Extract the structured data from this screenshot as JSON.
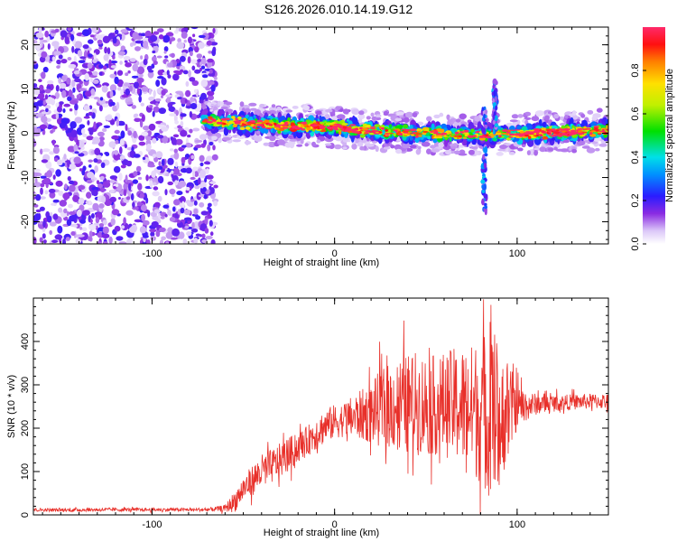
{
  "title": "S126.2026.010.14.19.G12",
  "chart_data": [
    {
      "type": "heatmap",
      "xlabel": "Height of straight line (km)",
      "ylabel": "Frequency (Hz)",
      "xlim": [
        -165,
        150
      ],
      "ylim": [
        -25,
        24
      ],
      "x_ticks": [
        -100,
        0,
        100
      ],
      "y_ticks": [
        20,
        10,
        0,
        -10,
        -20
      ],
      "grid": false,
      "colorbar": {
        "label": "Normalized spectral amplitude",
        "range": [
          0,
          1
        ],
        "ticks": [
          0.0,
          0.2,
          0.4,
          0.6,
          0.8
        ]
      },
      "features": [
        {
          "kind": "noise",
          "x_range": [
            -165,
            -65
          ],
          "y_range": [
            -25,
            24
          ],
          "level": 0.12
        },
        {
          "kind": "ridge",
          "x": [
            -72,
            -60,
            -50,
            -40,
            -30,
            -20,
            -10,
            0,
            10,
            20,
            30,
            40,
            50,
            60,
            70,
            80,
            90,
            100,
            110,
            120,
            130,
            140,
            150
          ],
          "y": [
            3,
            2.6,
            2.2,
            2,
            1.8,
            1.7,
            1.6,
            1.4,
            1,
            0.7,
            0.4,
            0.2,
            0,
            -0.2,
            -0.3,
            -0.3,
            -0.2,
            -0.1,
            0,
            0.2,
            0.4,
            0.6,
            0.8
          ],
          "amplitude": [
            0.35,
            0.5,
            0.55,
            0.6,
            0.62,
            0.65,
            0.7,
            0.72,
            0.7,
            0.65,
            0.6,
            0.58,
            0.56,
            0.55,
            0.52,
            0.5,
            0.45,
            0.6,
            0.66,
            0.68,
            0.66,
            0.6,
            0.55
          ]
        },
        {
          "kind": "vertical-streak",
          "x": 82,
          "y_range": [
            -18,
            6
          ],
          "level": 0.3
        },
        {
          "kind": "vertical-streak",
          "x": 88,
          "y_range": [
            0,
            12
          ],
          "level": 0.3
        }
      ]
    },
    {
      "type": "line",
      "xlabel": "Height of straight line (km)",
      "ylabel": "SNR (10 * v/v)",
      "xlim": [
        -165,
        150
      ],
      "ylim": [
        0,
        500
      ],
      "x_ticks": [
        -100,
        0,
        100
      ],
      "y_ticks": [
        0,
        100,
        200,
        300,
        400
      ],
      "grid": false,
      "color": "#e8302a",
      "series": [
        {
          "x": [
            -165,
            -150,
            -130,
            -110,
            -90,
            -80,
            -70,
            -60,
            -55,
            -50,
            -45,
            -40,
            -35,
            -30,
            -25,
            -20,
            -15,
            -10,
            -5,
            0,
            5,
            10,
            15,
            20,
            25,
            30,
            35,
            40,
            45,
            50,
            55,
            60,
            65,
            70,
            75,
            80,
            85,
            90,
            95,
            100,
            110,
            120,
            130,
            140,
            150
          ],
          "values": [
            12,
            11,
            12,
            12,
            12,
            12,
            12,
            15,
            30,
            60,
            80,
            100,
            110,
            125,
            140,
            155,
            170,
            190,
            205,
            215,
            220,
            225,
            230,
            235,
            245,
            250,
            255,
            255,
            258,
            255,
            252,
            255,
            255,
            250,
            245,
            240,
            240,
            235,
            240,
            250,
            255,
            258,
            260,
            262,
            262
          ],
          "spread": [
            4,
            4,
            4,
            4,
            4,
            4,
            4,
            8,
            25,
            30,
            35,
            40,
            40,
            40,
            40,
            35,
            35,
            40,
            40,
            40,
            40,
            50,
            60,
            70,
            90,
            100,
            110,
            115,
            120,
            120,
            115,
            120,
            130,
            140,
            150,
            170,
            200,
            160,
            120,
            50,
            25,
            20,
            18,
            18,
            18
          ]
        }
      ]
    }
  ],
  "colors": {
    "line": "#e8302a",
    "noise": "#7b1ee6",
    "background": "#ffffff"
  }
}
